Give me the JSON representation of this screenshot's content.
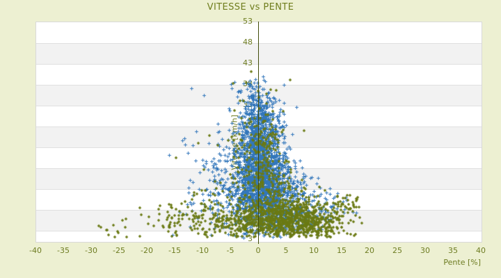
{
  "header": {
    "title": "VITESSE vs PENTE"
  },
  "chart_data": {
    "type": "scatter",
    "title": "VITESSE vs PENTE",
    "xlabel": "Pente [%]",
    "ylabel": "Vitesse [km/h]",
    "xlim": [
      -40,
      40
    ],
    "ylim": [
      3,
      53
    ],
    "x_ticks": [
      -40,
      -35,
      -30,
      -25,
      -20,
      -15,
      -10,
      -5,
      0,
      5,
      10,
      15,
      20,
      25,
      30,
      35,
      40
    ],
    "y_ticks": [
      53,
      48,
      43,
      38,
      33,
      28,
      23,
      18,
      13,
      8,
      3
    ],
    "grid": "horizontal-bands-alternating",
    "legend": "none",
    "zero_axis_x": 0,
    "series": [
      {
        "name": "vitesse-bleu",
        "marker": "plus",
        "color": "#3377bb",
        "distribution": "gaussian-clusters",
        "seed": 1042,
        "clip": {
          "xmin": -30,
          "xmax": 18,
          "ymin": 3.8,
          "ymax": 40.5
        },
        "clusters": [
          {
            "n": 1150,
            "cx": 0.8,
            "cy": 14.5,
            "sx": 2.6,
            "sy": 5.0
          },
          {
            "n": 750,
            "cx": 0.3,
            "cy": 24.0,
            "sx": 2.0,
            "sy": 4.5
          },
          {
            "n": 220,
            "cx": -0.2,
            "cy": 32.0,
            "sx": 1.6,
            "sy": 3.0
          },
          {
            "n": 45,
            "cx": -0.6,
            "cy": 37.5,
            "sx": 1.8,
            "sy": 1.8
          },
          {
            "n": 200,
            "cx": -4.5,
            "cy": 16.0,
            "sx": 3.2,
            "sy": 6.0
          },
          {
            "n": 260,
            "cx": 5.0,
            "cy": 11.5,
            "sx": 3.2,
            "sy": 4.0
          },
          {
            "n": 80,
            "cx": 10.0,
            "cy": 10.0,
            "sx": 3.0,
            "sy": 3.0
          },
          {
            "n": 60,
            "cx": -9.0,
            "cy": 14.0,
            "sx": 3.5,
            "sy": 7.0
          },
          {
            "n": 12,
            "cx": 14.0,
            "cy": 11.0,
            "sx": 2.0,
            "sy": 2.5
          },
          {
            "n": 10,
            "cx": -2.0,
            "cy": 36.0,
            "sx": 4.0,
            "sy": 2.0
          }
        ]
      },
      {
        "name": "vitesse-olive",
        "marker": "diamond",
        "color": "#6b7a14",
        "distribution": "gaussian-clusters",
        "seed": 77,
        "clip": {
          "xmin": -30,
          "xmax": 19,
          "ymin": 3.8,
          "ymax": 43.5
        },
        "clusters": [
          {
            "n": 380,
            "cx": 1.5,
            "cy": 7.2,
            "sx": 4.5,
            "sy": 2.2
          },
          {
            "n": 280,
            "cx": 5.5,
            "cy": 9.5,
            "sx": 2.8,
            "sy": 2.8
          },
          {
            "n": 240,
            "cx": 8.5,
            "cy": 7.0,
            "sx": 3.2,
            "sy": 2.2
          },
          {
            "n": 220,
            "cx": 1.2,
            "cy": 15.5,
            "sx": 2.4,
            "sy": 5.0
          },
          {
            "n": 110,
            "cx": 0.6,
            "cy": 26.0,
            "sx": 2.0,
            "sy": 4.0
          },
          {
            "n": 150,
            "cx": -7.5,
            "cy": 9.0,
            "sx": 5.0,
            "sy": 3.2
          },
          {
            "n": 40,
            "cx": -15.0,
            "cy": 7.5,
            "sx": 4.0,
            "sy": 2.0
          },
          {
            "n": 14,
            "cx": -26.0,
            "cy": 5.0,
            "sx": 2.0,
            "sy": 1.2
          },
          {
            "n": 90,
            "cx": 13.5,
            "cy": 8.0,
            "sx": 2.5,
            "sy": 2.5
          },
          {
            "n": 25,
            "cx": 16.0,
            "cy": 12.0,
            "sx": 1.5,
            "sy": 1.5
          },
          {
            "n": 12,
            "cx": -0.5,
            "cy": 36.0,
            "sx": 2.5,
            "sy": 3.0
          },
          {
            "n": 30,
            "cx": -3.5,
            "cy": 21.0,
            "sx": 4.5,
            "sy": 6.0
          }
        ]
      }
    ]
  },
  "colors": {
    "background": "#edf0d2",
    "band_light": "#ffffff",
    "band_dark": "#f2f2f2",
    "band_line": "#e0e0e0",
    "plot_border": "#d9d9d9",
    "zero_axis": "#414d0b",
    "text": "#6e7c22",
    "title_text": "#6f7d1d",
    "series_blue": "#3377bb",
    "series_olive": "#6b7a14"
  }
}
